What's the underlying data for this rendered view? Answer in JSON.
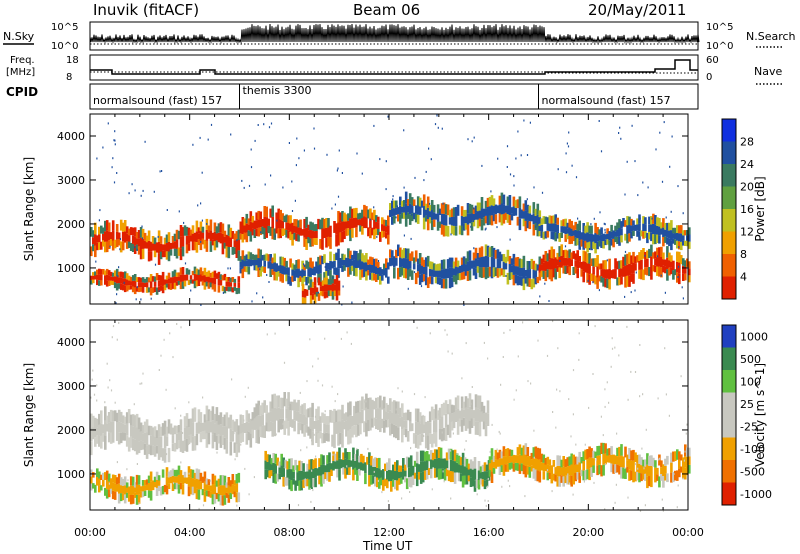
{
  "header": {
    "station": "Inuvik (fitACF)",
    "beam": "Beam 06",
    "date": "20/May/2011"
  },
  "top_panels": {
    "nsky_label": "N.Sky",
    "nsearch_label": "N.Search",
    "sky_ticks": [
      "10^5",
      "10^0"
    ],
    "search_ticks": [
      "10^5",
      "10^0"
    ],
    "freq_label": [
      "Freq.",
      "[MHz]"
    ],
    "freq_ticks": [
      "18",
      "8"
    ],
    "nave_label": "Nave",
    "nave_ticks": [
      "60",
      "0"
    ],
    "cpid_label": "CPID",
    "cpid_segments": [
      {
        "name": "normalsound (fast)",
        "id": "157",
        "start": 0.0,
        "end": 6.0
      },
      {
        "name": "themis",
        "id": "3300",
        "start": 6.0,
        "end": 18.0
      },
      {
        "name": "normalsound (fast)",
        "id": "157",
        "start": 18.0,
        "end": 24.0
      }
    ]
  },
  "chart_data": [
    {
      "type": "heatmap",
      "title": "",
      "ylabel": "Slant Range [km]",
      "xlabel": "",
      "xlim": [
        0,
        24
      ],
      "ylim": [
        180,
        4500
      ],
      "yticks": [
        "1000",
        "2000",
        "3000",
        "4000"
      ],
      "colorbar": {
        "label": "Power [dB]",
        "ticks": [
          "4",
          "8",
          "12",
          "16",
          "20",
          "24",
          "28"
        ],
        "colors": [
          "#1030e0",
          "#2050a0",
          "#3a7a60",
          "#60a040",
          "#c0c020",
          "#f0a000",
          "#f06000",
          "#e02000"
        ]
      },
      "bands": [
        {
          "start": 0.0,
          "end": 6.0,
          "center": 1600,
          "width": 400,
          "level": "strong"
        },
        {
          "start": 0.0,
          "end": 6.0,
          "center": 700,
          "width": 250,
          "level": "strong"
        },
        {
          "start": 6.0,
          "end": 12.0,
          "center": 1900,
          "width": 400,
          "level": "strong"
        },
        {
          "start": 6.0,
          "end": 12.0,
          "center": 1000,
          "width": 350,
          "level": "medium"
        },
        {
          "start": 8.5,
          "end": 10.0,
          "center": 450,
          "width": 300,
          "level": "strong"
        },
        {
          "start": 12.0,
          "end": 18.0,
          "center": 2200,
          "width": 400,
          "level": "medium"
        },
        {
          "start": 12.0,
          "end": 18.0,
          "center": 1000,
          "width": 400,
          "level": "medium"
        },
        {
          "start": 18.0,
          "end": 24.0,
          "center": 1000,
          "width": 400,
          "level": "strong"
        },
        {
          "start": 18.0,
          "end": 24.0,
          "center": 1800,
          "width": 350,
          "level": "medium"
        }
      ]
    },
    {
      "type": "heatmap",
      "title": "",
      "ylabel": "Slant Range [km]",
      "xlabel": "Time UT",
      "xlim": [
        0,
        24
      ],
      "ylim": [
        180,
        4500
      ],
      "xticks": [
        "00:00",
        "04:00",
        "08:00",
        "12:00",
        "16:00",
        "20:00",
        "00:00"
      ],
      "yticks": [
        "1000",
        "2000",
        "3000",
        "4000"
      ],
      "colorbar": {
        "label": "Velocity [m s^-1]",
        "ticks": [
          "1000",
          "500",
          "100",
          "25",
          "-25",
          "-100",
          "-500",
          "-1000"
        ],
        "colors": [
          "#2040c0",
          "#3a8a50",
          "#60c040",
          "#c8c8c0",
          "#c8c8c0",
          "#f0a000",
          "#f07000",
          "#e02000"
        ]
      },
      "bands": [
        {
          "start": 0.0,
          "end": 6.0,
          "center": 1900,
          "width": 500,
          "level": "grey"
        },
        {
          "start": 6.0,
          "end": 16.0,
          "center": 2200,
          "width": 500,
          "level": "grey"
        },
        {
          "start": 0.0,
          "end": 6.0,
          "center": 750,
          "width": 350,
          "level": "orange"
        },
        {
          "start": 7.0,
          "end": 16.0,
          "center": 1100,
          "width": 400,
          "level": "green"
        },
        {
          "start": 16.0,
          "end": 24.0,
          "center": 1200,
          "width": 400,
          "level": "orange"
        }
      ]
    }
  ]
}
